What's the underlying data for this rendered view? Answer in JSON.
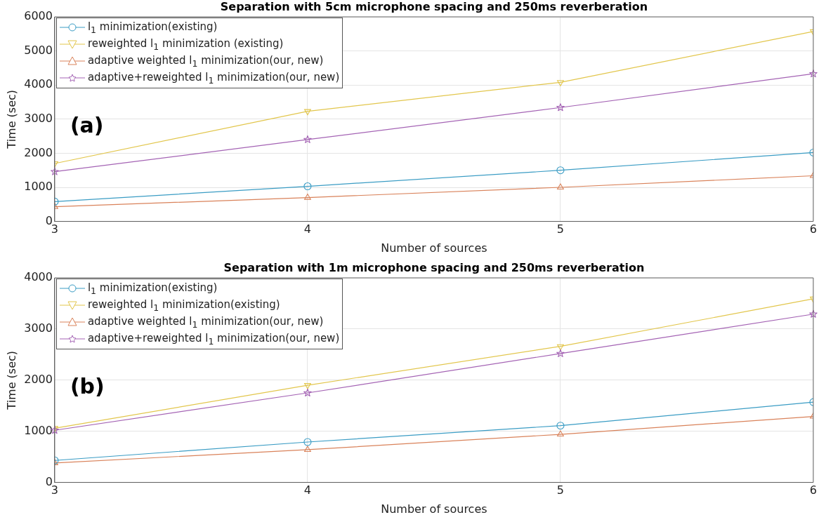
{
  "chart_data": [
    {
      "type": "line",
      "title": "Separation with 5cm microphone spacing and 250ms reverberation",
      "xlabel": "Number of sources",
      "ylabel": "Time (sec)",
      "annotations": [
        "(a)"
      ],
      "x": [
        3,
        4,
        5,
        6
      ],
      "xlim": [
        3,
        6
      ],
      "xticks": [
        3,
        4,
        5,
        6
      ],
      "ylim": [
        0,
        6000
      ],
      "yticks": [
        0,
        1000,
        2000,
        3000,
        4000,
        5000,
        6000
      ],
      "grid": true,
      "legend": "top left",
      "line_style": "solid",
      "series": [
        {
          "name": "l$_{1}$ minimization(existing)",
          "color": "#3a9cc4",
          "marker": "circle",
          "values": [
            580,
            1030,
            1500,
            2020
          ]
        },
        {
          "name": "reweighted l$_{1}$ minimization (existing)",
          "color": "#e2c64c",
          "marker": "triangle-down",
          "values": [
            1700,
            3230,
            4080,
            5570
          ]
        },
        {
          "name": "adaptive weighted l$_{1}$ minimization(our, new)",
          "color": "#d9825a",
          "marker": "triangle",
          "values": [
            430,
            700,
            1000,
            1340
          ]
        },
        {
          "name": "adaptive+reweighted l$_{1}$ minimization(our, new)",
          "color": "#a463b4",
          "marker": "star",
          "values": [
            1460,
            2400,
            3340,
            4330
          ]
        }
      ]
    },
    {
      "type": "line",
      "title": "Separation with 1m microphone spacing and 250ms reverberation",
      "xlabel": "Number of sources",
      "ylabel": "Time (sec)",
      "annotations": [
        "(b)"
      ],
      "x": [
        3,
        4,
        5,
        6
      ],
      "xlim": [
        3,
        6
      ],
      "xticks": [
        3,
        4,
        5,
        6
      ],
      "ylim": [
        0,
        4000
      ],
      "yticks": [
        0,
        1000,
        2000,
        3000,
        4000
      ],
      "grid": true,
      "legend": "top left",
      "line_style": "solid",
      "series": [
        {
          "name": "l$_{1}$ minimization(existing)",
          "color": "#3a9cc4",
          "marker": "circle",
          "values": [
            430,
            790,
            1110,
            1570
          ]
        },
        {
          "name": "reweighted l$_{1}$ minimization(existing)",
          "color": "#e2c64c",
          "marker": "triangle-down",
          "values": [
            1060,
            1900,
            2660,
            3590
          ]
        },
        {
          "name": "adaptive weighted l$_{1}$ minimization(our, new)",
          "color": "#d9825a",
          "marker": "triangle",
          "values": [
            380,
            640,
            940,
            1290
          ]
        },
        {
          "name": "adaptive+reweighted l$_{1}$ minimization(our, new)",
          "color": "#a463b4",
          "marker": "star",
          "values": [
            1020,
            1750,
            2520,
            3290
          ]
        }
      ]
    }
  ]
}
